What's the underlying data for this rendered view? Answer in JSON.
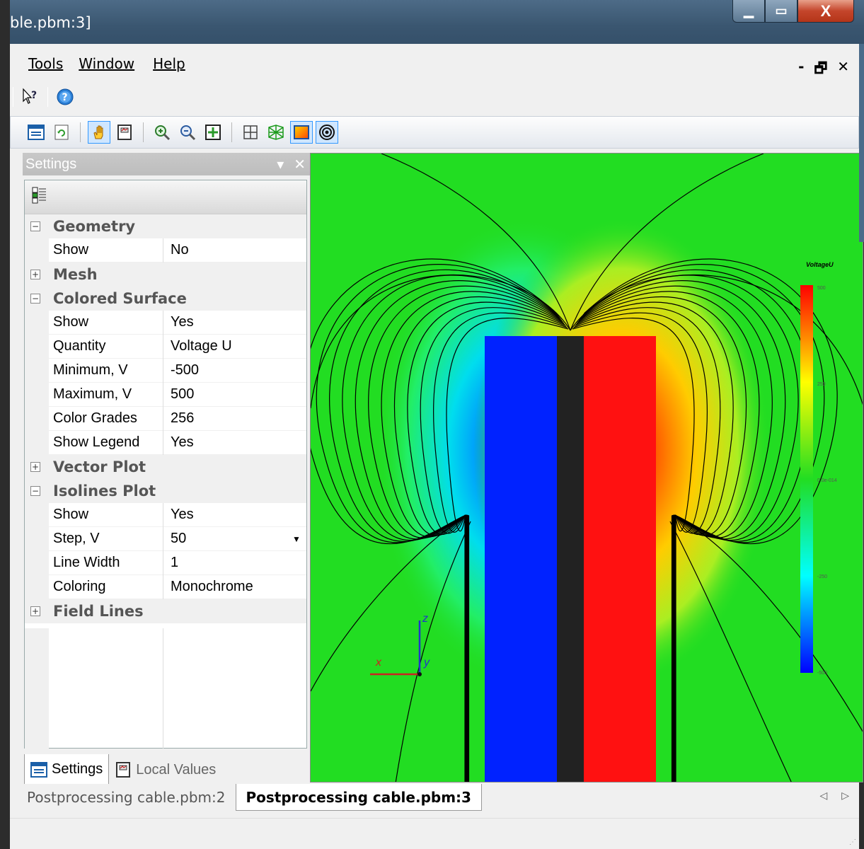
{
  "window": {
    "title": "ble.pbm:3]",
    "min": "▁",
    "max": "▭",
    "close": "X"
  },
  "menu": {
    "items": [
      {
        "label": "Tools"
      },
      {
        "label": "Window"
      },
      {
        "label": "Help"
      }
    ],
    "mdi_controls": {
      "min": "-",
      "restore": "🗗",
      "close": "✕"
    }
  },
  "help_toolbar": {
    "whats_this": "?",
    "help": "?"
  },
  "settings_panel": {
    "title": "Settings",
    "pin": "▾",
    "close": "✕",
    "rows": [
      {
        "type": "cat",
        "label": "Geometry",
        "expanded": true
      },
      {
        "type": "prop",
        "label": "Show",
        "value": "No"
      },
      {
        "type": "cat",
        "label": "Mesh",
        "expanded": false
      },
      {
        "type": "cat",
        "label": "Colored Surface",
        "expanded": true
      },
      {
        "type": "prop",
        "label": "Show",
        "value": "Yes"
      },
      {
        "type": "prop",
        "label": "Quantity",
        "value": "Voltage U"
      },
      {
        "type": "prop",
        "label": "Minimum, V",
        "value": "-500"
      },
      {
        "type": "prop",
        "label": "Maximum, V",
        "value": "500"
      },
      {
        "type": "prop",
        "label": "Color Grades",
        "value": "256"
      },
      {
        "type": "prop",
        "label": "Show Legend",
        "value": "Yes"
      },
      {
        "type": "cat",
        "label": "Vector Plot",
        "expanded": false
      },
      {
        "type": "cat",
        "label": "Isolines Plot",
        "expanded": true
      },
      {
        "type": "prop",
        "label": "Show",
        "value": "Yes"
      },
      {
        "type": "prop",
        "label": "Step, V",
        "value": "50",
        "dropdown": true
      },
      {
        "type": "prop",
        "label": "Line Width",
        "value": "1"
      },
      {
        "type": "prop",
        "label": "Coloring",
        "value": "Monochrome"
      },
      {
        "type": "cat",
        "label": "Field Lines",
        "expanded": false
      }
    ],
    "tabs": [
      {
        "label": "Settings",
        "selected": true
      },
      {
        "label": "Local Values",
        "selected": false
      }
    ]
  },
  "view": {
    "legend": {
      "title": "VoltageU",
      "ticks": [
        "500",
        "250",
        "0.0e-014",
        "-250",
        "-500"
      ]
    },
    "axes": {
      "x": "x",
      "y": "y",
      "z": "z"
    },
    "colors": {
      "background": "#22dd22",
      "negative": "#0022ff",
      "positive": "#ff1111",
      "insulator": "#222222"
    }
  },
  "doc_tabs": [
    {
      "label": "Postprocessing cable.pbm:2",
      "selected": false
    },
    {
      "label": "Postprocessing cable.pbm:3",
      "selected": true
    }
  ],
  "nav": {
    "prev": "◁",
    "next": "▷"
  },
  "status": {
    "grip": "⋰"
  }
}
